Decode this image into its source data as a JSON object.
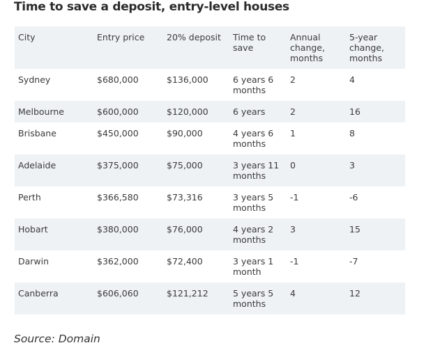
{
  "title": "Time to save a deposit, entry-level houses",
  "source": "Source: Domain",
  "table": {
    "headers": [
      "City",
      "Entry price",
      "20% deposit",
      "Time to save",
      "Annual change, months",
      "5-year change, months"
    ],
    "rows": [
      {
        "city": "Sydney",
        "entry_price": "$680,000",
        "deposit": "$136,000",
        "time_to_save": "6 years 6 months",
        "annual_change": "2",
        "five_year_change": "4"
      },
      {
        "city": "Melbourne",
        "entry_price": "$600,000",
        "deposit": "$120,000",
        "time_to_save": "6 years",
        "annual_change": "2",
        "five_year_change": "16"
      },
      {
        "city": "Brisbane",
        "entry_price": "$450,000",
        "deposit": "$90,000",
        "time_to_save": "4 years 6 months",
        "annual_change": "1",
        "five_year_change": "8"
      },
      {
        "city": "Adelaide",
        "entry_price": "$375,000",
        "deposit": "$75,000",
        "time_to_save": "3 years 11 months",
        "annual_change": "0",
        "five_year_change": "3"
      },
      {
        "city": "Perth",
        "entry_price": "$366,580",
        "deposit": "$73,316",
        "time_to_save": "3 years 5 months",
        "annual_change": "-1",
        "five_year_change": "-6"
      },
      {
        "city": "Hobart",
        "entry_price": "$380,000",
        "deposit": "$76,000",
        "time_to_save": "4 years 2 months",
        "annual_change": "3",
        "five_year_change": "15"
      },
      {
        "city": "Darwin",
        "entry_price": "$362,000",
        "deposit": "$72,400",
        "time_to_save": "3 years 1 month",
        "annual_change": "-1",
        "five_year_change": "-7"
      },
      {
        "city": "Canberra",
        "entry_price": "$606,060",
        "deposit": "$121,212",
        "time_to_save": "5 years 5 months",
        "annual_change": "4",
        "five_year_change": "12"
      }
    ]
  },
  "colors": {
    "shaded_row": "#eef2f5",
    "text": "#3a3a3a"
  }
}
